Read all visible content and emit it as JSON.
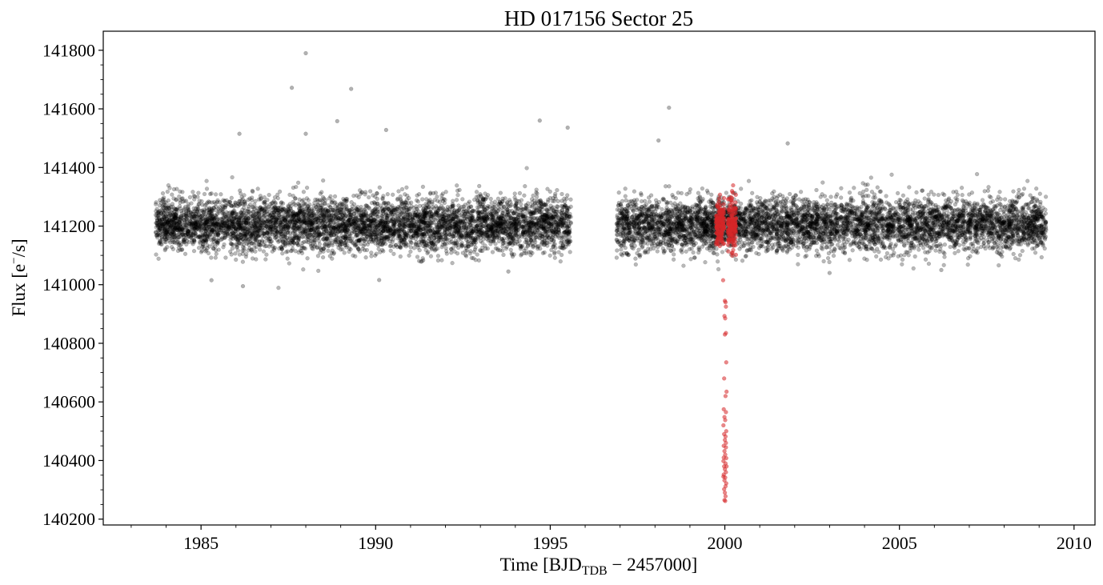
{
  "chart_data": {
    "type": "scatter",
    "title": "HD 017156 Sector 25",
    "xlabel": {
      "prefix": "Time [BJD",
      "subscript": "TDB",
      "suffix": " − 2457000]"
    },
    "ylabel": {
      "prefix": "Flux [e",
      "superscript": "−",
      "suffix": "/s]"
    },
    "xlim": [
      1982.2,
      2010.6
    ],
    "ylim": [
      140180,
      141865
    ],
    "xticks": [
      1985,
      1990,
      1995,
      2000,
      2005,
      2010
    ],
    "xtick_labels": [
      "1985",
      "1990",
      "1995",
      "2000",
      "2005",
      "2010"
    ],
    "yticks": [
      140200,
      140400,
      140600,
      140800,
      141000,
      141200,
      141400,
      141600,
      141800
    ],
    "ytick_labels": [
      "140200",
      "140400",
      "140600",
      "140800",
      "141000",
      "141200",
      "141400",
      "141600",
      "141800"
    ],
    "grid": false,
    "series": [
      {
        "color": "#000000",
        "segments": [
          {
            "x_start": 1983.7,
            "x_end": 1995.6,
            "n": 5200
          },
          {
            "x_start": 1996.9,
            "x_end": 2009.2,
            "n": 5200
          }
        ],
        "median": 141205,
        "scatter_sigma": 45,
        "outliers": [
          {
            "x": 1987.6,
            "y": 141672
          },
          {
            "x": 1988.0,
            "y": 141790
          },
          {
            "x": 1989.3,
            "y": 141668
          },
          {
            "x": 1998.4,
            "y": 141604
          },
          {
            "x": 1988.0,
            "y": 141515
          },
          {
            "x": 1986.1,
            "y": 141515
          },
          {
            "x": 1988.9,
            "y": 141558
          },
          {
            "x": 1990.3,
            "y": 141528
          },
          {
            "x": 1994.7,
            "y": 141560
          },
          {
            "x": 1995.5,
            "y": 141536
          },
          {
            "x": 1998.1,
            "y": 141492
          },
          {
            "x": 2001.8,
            "y": 141482
          },
          {
            "x": 1986.2,
            "y": 140995
          },
          {
            "x": 1985.3,
            "y": 141015
          },
          {
            "x": 1990.1,
            "y": 141016
          },
          {
            "x": 2003.0,
            "y": 141040
          },
          {
            "x": 2006.2,
            "y": 141050
          },
          {
            "x": 1993.8,
            "y": 141045
          }
        ]
      },
      {
        "color": "#d62728",
        "transit": true,
        "x_center": 2000.0,
        "clusters": [
          {
            "x_start": 1999.75,
            "x_end": 1999.98,
            "n": 140
          },
          {
            "x_start": 2000.09,
            "x_end": 2000.32,
            "n": 140
          }
        ],
        "transit_points": [
          {
            "x": 1999.95,
            "y": 141015
          },
          {
            "x": 2000.0,
            "y": 140945
          },
          {
            "x": 2000.02,
            "y": 140940
          },
          {
            "x": 2000.03,
            "y": 140925
          },
          {
            "x": 1999.99,
            "y": 140893
          },
          {
            "x": 2000.01,
            "y": 140885
          },
          {
            "x": 2000.03,
            "y": 140835
          },
          {
            "x": 2000.0,
            "y": 140830
          },
          {
            "x": 2000.04,
            "y": 140735
          },
          {
            "x": 1999.98,
            "y": 140680
          },
          {
            "x": 2000.05,
            "y": 140635
          },
          {
            "x": 2000.02,
            "y": 140620
          },
          {
            "x": 1999.97,
            "y": 140575
          },
          {
            "x": 2000.03,
            "y": 140565
          },
          {
            "x": 1999.99,
            "y": 140548
          },
          {
            "x": 2000.01,
            "y": 140538
          },
          {
            "x": 1999.96,
            "y": 140520
          },
          {
            "x": 2000.04,
            "y": 140500
          },
          {
            "x": 1999.98,
            "y": 140490
          },
          {
            "x": 2000.02,
            "y": 140482
          },
          {
            "x": 2000.0,
            "y": 140470
          },
          {
            "x": 1999.97,
            "y": 140450
          },
          {
            "x": 2000.03,
            "y": 140445
          },
          {
            "x": 1999.99,
            "y": 140432
          },
          {
            "x": 2000.01,
            "y": 140420
          },
          {
            "x": 2000.04,
            "y": 140408
          },
          {
            "x": 1999.96,
            "y": 140398
          },
          {
            "x": 2000.02,
            "y": 140390
          },
          {
            "x": 1999.98,
            "y": 140380
          },
          {
            "x": 2000.0,
            "y": 140370
          },
          {
            "x": 2000.03,
            "y": 140360
          },
          {
            "x": 1999.97,
            "y": 140352
          },
          {
            "x": 2000.01,
            "y": 140342
          },
          {
            "x": 1999.99,
            "y": 140332
          },
          {
            "x": 2000.04,
            "y": 140322
          },
          {
            "x": 2000.02,
            "y": 140312
          },
          {
            "x": 1999.98,
            "y": 140302
          },
          {
            "x": 2000.0,
            "y": 140290
          },
          {
            "x": 2000.02,
            "y": 140278
          },
          {
            "x": 1999.99,
            "y": 140265
          },
          {
            "x": 2000.01,
            "y": 140262
          },
          {
            "x": 1999.97,
            "y": 140410
          },
          {
            "x": 2000.05,
            "y": 140380
          },
          {
            "x": 1999.96,
            "y": 140345
          },
          {
            "x": 2000.03,
            "y": 140460
          }
        ]
      }
    ]
  }
}
